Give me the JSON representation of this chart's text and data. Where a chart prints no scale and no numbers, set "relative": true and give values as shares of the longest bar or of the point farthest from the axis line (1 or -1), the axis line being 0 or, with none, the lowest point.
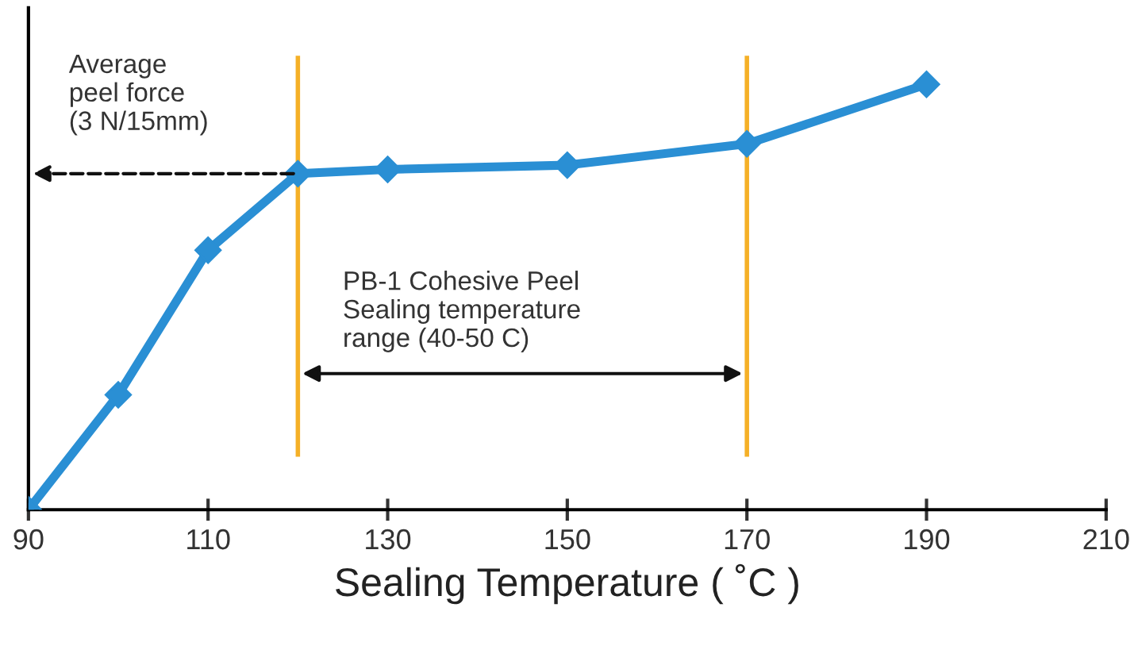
{
  "chart_data": {
    "type": "line",
    "relative": true,
    "xlabel": "Sealing Temperature ( ˚C )",
    "x": [
      90,
      100,
      110,
      120,
      130,
      150,
      170,
      190
    ],
    "series": [
      {
        "color": "#2a8fd4",
        "values": [
          0,
          0.27,
          0.61,
          0.79,
          0.8,
          0.81,
          0.86,
          1
        ]
      }
    ],
    "xlim": [
      90,
      210
    ],
    "xticks": [
      90,
      110,
      130,
      150,
      170,
      190,
      210
    ],
    "marker": "diamond",
    "line_style": "solid",
    "grid": false,
    "legend": false,
    "tick_labels": "x",
    "ref_lines": [
      {
        "axis": "x",
        "value": 120,
        "color": "#f5b027"
      },
      {
        "axis": "x",
        "value": 170,
        "color": "#f5b027"
      }
    ],
    "annotations": [
      "Average\npeel force\n(3 N/15mm)",
      "PB-1 Cohesive Peel\nSealing temperature\nrange (40-50 C)"
    ]
  }
}
